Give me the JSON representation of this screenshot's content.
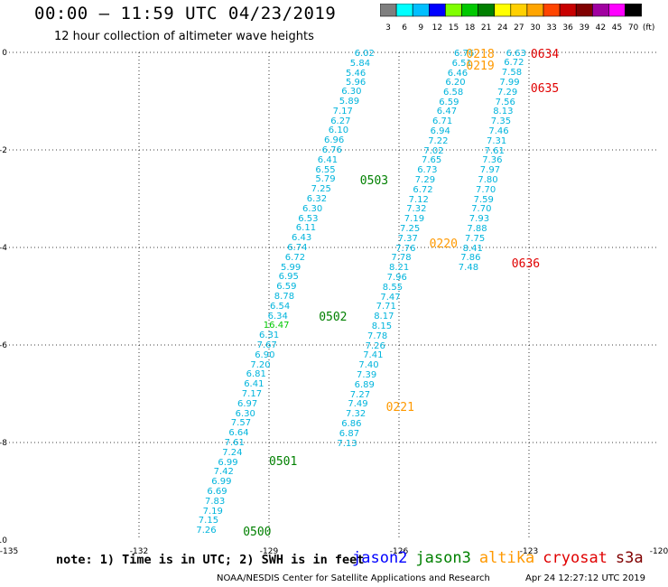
{
  "header": {
    "title": "00:00 — 11:59 UTC 04/23/2019",
    "subtitle": "12 hour collection of altimeter wave heights"
  },
  "color_scale": {
    "unit": "(ft)",
    "bins": [
      {
        "label": "3",
        "color": "#7f7f7f"
      },
      {
        "label": "6",
        "color": "#00ffff"
      },
      {
        "label": "9",
        "color": "#00bfff"
      },
      {
        "label": "12",
        "color": "#0000ff"
      },
      {
        "label": "15",
        "color": "#7fff00"
      },
      {
        "label": "18",
        "color": "#00c800"
      },
      {
        "label": "21",
        "color": "#008000"
      },
      {
        "label": "24",
        "color": "#ffff00"
      },
      {
        "label": "27",
        "color": "#ffd000"
      },
      {
        "label": "30",
        "color": "#ffa500"
      },
      {
        "label": "33",
        "color": "#ff4500"
      },
      {
        "label": "36",
        "color": "#c80000"
      },
      {
        "label": "39",
        "color": "#800000"
      },
      {
        "label": "42",
        "color": "#a000a0"
      },
      {
        "label": "45",
        "color": "#ff00ff"
      },
      {
        "label": "70",
        "color": "#000000"
      }
    ]
  },
  "axes": {
    "x_ticks": [
      "-135",
      "-132",
      "-129",
      "-126",
      "-123",
      "-120"
    ],
    "y_ticks": [
      "0",
      "-2",
      "-4",
      "-6",
      "-8",
      "-10"
    ],
    "x_range": [
      -135,
      -120
    ],
    "y_range": [
      -10,
      0
    ]
  },
  "chart_data": {
    "type": "scatter",
    "series": [
      {
        "track": "A",
        "color": "#00b4dc",
        "points": [
          {
            "lon": -126.8,
            "lat": -0.03,
            "v": "6.02"
          },
          {
            "lon": -126.9,
            "lat": -0.24,
            "v": "5.84"
          },
          {
            "lon": -127.0,
            "lat": -0.44,
            "v": "5.46"
          },
          {
            "lon": -127.0,
            "lat": -0.63,
            "v": "5.96"
          },
          {
            "lon": -127.1,
            "lat": -0.82,
            "v": "6.30"
          },
          {
            "lon": -127.15,
            "lat": -1.02,
            "v": "5.89"
          },
          {
            "lon": -127.3,
            "lat": -1.22,
            "v": "7.17"
          },
          {
            "lon": -127.35,
            "lat": -1.42,
            "v": "6.27"
          },
          {
            "lon": -127.4,
            "lat": -1.62,
            "v": "6.10"
          },
          {
            "lon": -127.5,
            "lat": -1.82,
            "v": "6.96"
          },
          {
            "lon": -127.55,
            "lat": -2.02,
            "v": "6.76"
          },
          {
            "lon": -127.65,
            "lat": -2.22,
            "v": "6.41"
          },
          {
            "lon": -127.7,
            "lat": -2.42,
            "v": "6.55"
          },
          {
            "lon": -127.7,
            "lat": -2.62,
            "v": "5.79"
          },
          {
            "lon": -127.8,
            "lat": -2.82,
            "v": "7.25"
          },
          {
            "lon": -127.9,
            "lat": -3.02,
            "v": "6.32"
          },
          {
            "lon": -128.0,
            "lat": -3.22,
            "v": "6.30"
          },
          {
            "lon": -128.1,
            "lat": -3.42,
            "v": "6.53"
          },
          {
            "lon": -128.15,
            "lat": -3.62,
            "v": "6.11"
          },
          {
            "lon": -128.25,
            "lat": -3.82,
            "v": "6.43"
          },
          {
            "lon": -128.35,
            "lat": -4.02,
            "v": "6.74"
          },
          {
            "lon": -128.4,
            "lat": -4.22,
            "v": "6.72"
          },
          {
            "lon": -128.5,
            "lat": -4.42,
            "v": "5.99"
          },
          {
            "lon": -128.55,
            "lat": -4.62,
            "v": "6.95"
          },
          {
            "lon": -128.6,
            "lat": -4.82,
            "v": "6.59"
          },
          {
            "lon": -128.65,
            "lat": -5.02,
            "v": "8.78"
          },
          {
            "lon": -128.75,
            "lat": -5.22,
            "v": "6.54"
          },
          {
            "lon": -128.8,
            "lat": -5.42,
            "v": "6.34"
          },
          {
            "lon": -128.9,
            "lat": -5.62,
            "v": "16.47",
            "color": "#00c800"
          },
          {
            "lon": -129.0,
            "lat": -5.82,
            "v": "6.31"
          },
          {
            "lon": -129.05,
            "lat": -6.02,
            "v": "7.67"
          },
          {
            "lon": -129.1,
            "lat": -6.22,
            "v": "6.90"
          },
          {
            "lon": -129.2,
            "lat": -6.42,
            "v": "7.20"
          },
          {
            "lon": -129.3,
            "lat": -6.62,
            "v": "6.81"
          },
          {
            "lon": -129.35,
            "lat": -6.82,
            "v": "6.41"
          },
          {
            "lon": -129.4,
            "lat": -7.02,
            "v": "7.17"
          },
          {
            "lon": -129.5,
            "lat": -7.22,
            "v": "6.97"
          },
          {
            "lon": -129.55,
            "lat": -7.42,
            "v": "6.30"
          },
          {
            "lon": -129.65,
            "lat": -7.62,
            "v": "7.57"
          },
          {
            "lon": -129.7,
            "lat": -7.82,
            "v": "6.64"
          },
          {
            "lon": -129.8,
            "lat": -8.02,
            "v": "7.61"
          },
          {
            "lon": -129.85,
            "lat": -8.22,
            "v": "7.24"
          },
          {
            "lon": -129.95,
            "lat": -8.42,
            "v": "6.99"
          },
          {
            "lon": -130.05,
            "lat": -8.62,
            "v": "7.42"
          },
          {
            "lon": -130.1,
            "lat": -8.82,
            "v": "6.99"
          },
          {
            "lon": -130.2,
            "lat": -9.02,
            "v": "6.69"
          },
          {
            "lon": -130.25,
            "lat": -9.22,
            "v": "7.83"
          },
          {
            "lon": -130.3,
            "lat": -9.42,
            "v": "7.19"
          },
          {
            "lon": -130.4,
            "lat": -9.62,
            "v": "7.15"
          },
          {
            "lon": -130.45,
            "lat": -9.82,
            "v": "7.26"
          }
        ]
      },
      {
        "track": "B",
        "color": "#00b4dc",
        "points": [
          {
            "lon": -124.5,
            "lat": -0.03,
            "v": "6.76"
          },
          {
            "lon": -124.55,
            "lat": -0.24,
            "v": "6.51"
          },
          {
            "lon": -124.65,
            "lat": -0.44,
            "v": "6.46"
          },
          {
            "lon": -124.7,
            "lat": -0.63,
            "v": "6.20"
          },
          {
            "lon": -124.75,
            "lat": -0.83,
            "v": "6.58"
          },
          {
            "lon": -124.85,
            "lat": -1.03,
            "v": "6.59"
          },
          {
            "lon": -124.9,
            "lat": -1.23,
            "v": "6.47"
          },
          {
            "lon": -125.0,
            "lat": -1.43,
            "v": "6.71"
          },
          {
            "lon": -125.05,
            "lat": -1.63,
            "v": "6.94"
          },
          {
            "lon": -125.1,
            "lat": -1.83,
            "v": "7.22"
          },
          {
            "lon": -125.2,
            "lat": -2.03,
            "v": "7.02"
          },
          {
            "lon": -125.25,
            "lat": -2.23,
            "v": "7.65"
          },
          {
            "lon": -125.35,
            "lat": -2.43,
            "v": "6.73"
          },
          {
            "lon": -125.4,
            "lat": -2.63,
            "v": "7.29"
          },
          {
            "lon": -125.45,
            "lat": -2.83,
            "v": "6.72"
          },
          {
            "lon": -125.55,
            "lat": -3.03,
            "v": "7.12"
          },
          {
            "lon": -125.6,
            "lat": -3.23,
            "v": "7.32"
          },
          {
            "lon": -125.65,
            "lat": -3.43,
            "v": "7.19"
          },
          {
            "lon": -125.75,
            "lat": -3.63,
            "v": "7.25"
          },
          {
            "lon": -125.8,
            "lat": -3.83,
            "v": "7.37"
          },
          {
            "lon": -125.85,
            "lat": -4.03,
            "v": "7.76"
          },
          {
            "lon": -125.95,
            "lat": -4.23,
            "v": "7.78"
          },
          {
            "lon": -126.0,
            "lat": -4.43,
            "v": "8.21"
          },
          {
            "lon": -126.05,
            "lat": -4.63,
            "v": "7.96"
          },
          {
            "lon": -126.15,
            "lat": -4.83,
            "v": "8.55"
          },
          {
            "lon": -126.2,
            "lat": -5.03,
            "v": "7.47"
          },
          {
            "lon": -126.3,
            "lat": -5.23,
            "v": "7.71"
          },
          {
            "lon": -126.35,
            "lat": -5.43,
            "v": "8.17"
          },
          {
            "lon": -126.4,
            "lat": -5.63,
            "v": "8.15"
          },
          {
            "lon": -126.5,
            "lat": -5.83,
            "v": "7.78"
          },
          {
            "lon": -126.55,
            "lat": -6.03,
            "v": "7.26"
          },
          {
            "lon": -126.6,
            "lat": -6.23,
            "v": "7.41"
          },
          {
            "lon": -126.7,
            "lat": -6.43,
            "v": "7.40"
          },
          {
            "lon": -126.75,
            "lat": -6.63,
            "v": "7.39"
          },
          {
            "lon": -126.8,
            "lat": -6.83,
            "v": "6.89"
          },
          {
            "lon": -126.9,
            "lat": -7.03,
            "v": "7.27"
          },
          {
            "lon": -126.95,
            "lat": -7.23,
            "v": "7.49"
          },
          {
            "lon": -127.0,
            "lat": -7.43,
            "v": "7.32"
          },
          {
            "lon": -127.1,
            "lat": -7.63,
            "v": "6.86"
          },
          {
            "lon": -127.15,
            "lat": -7.83,
            "v": "6.87"
          },
          {
            "lon": -127.2,
            "lat": -8.03,
            "v": "7.13"
          }
        ]
      },
      {
        "track": "C",
        "color": "#00b4dc",
        "points": [
          {
            "lon": -123.3,
            "lat": -0.03,
            "v": "6.63"
          },
          {
            "lon": -123.35,
            "lat": -0.23,
            "v": "6.72"
          },
          {
            "lon": -123.4,
            "lat": -0.43,
            "v": "7.58"
          },
          {
            "lon": -123.45,
            "lat": -0.63,
            "v": "7.99"
          },
          {
            "lon": -123.5,
            "lat": -0.83,
            "v": "7.29"
          },
          {
            "lon": -123.55,
            "lat": -1.03,
            "v": "7.56"
          },
          {
            "lon": -123.6,
            "lat": -1.23,
            "v": "8.13"
          },
          {
            "lon": -123.65,
            "lat": -1.43,
            "v": "7.35"
          },
          {
            "lon": -123.7,
            "lat": -1.63,
            "v": "7.46"
          },
          {
            "lon": -123.75,
            "lat": -1.83,
            "v": "7.31"
          },
          {
            "lon": -123.8,
            "lat": -2.03,
            "v": "7.61"
          },
          {
            "lon": -123.85,
            "lat": -2.23,
            "v": "7.36"
          },
          {
            "lon": -123.9,
            "lat": -2.43,
            "v": "7.97"
          },
          {
            "lon": -123.95,
            "lat": -2.63,
            "v": "7.80"
          },
          {
            "lon": -124.0,
            "lat": -2.83,
            "v": "7.70"
          },
          {
            "lon": -124.05,
            "lat": -3.03,
            "v": "7.59"
          },
          {
            "lon": -124.1,
            "lat": -3.23,
            "v": "7.70"
          },
          {
            "lon": -124.15,
            "lat": -3.43,
            "v": "7.93"
          },
          {
            "lon": -124.2,
            "lat": -3.63,
            "v": "7.88"
          },
          {
            "lon": -124.25,
            "lat": -3.83,
            "v": "7.75"
          },
          {
            "lon": -124.3,
            "lat": -4.03,
            "v": "8.41"
          },
          {
            "lon": -124.35,
            "lat": -4.23,
            "v": "7.86"
          },
          {
            "lon": -124.4,
            "lat": -4.43,
            "v": "7.48"
          }
        ]
      }
    ],
    "time_labels": [
      {
        "text": "0218",
        "color": "#ff9900",
        "lon": -124.45,
        "lat": -0.05
      },
      {
        "text": "0219",
        "color": "#ff9900",
        "lon": -124.45,
        "lat": -0.3
      },
      {
        "text": "0220",
        "color": "#ff9900",
        "lon": -125.3,
        "lat": -3.95
      },
      {
        "text": "0221",
        "color": "#ff9900",
        "lon": -126.3,
        "lat": -7.3
      },
      {
        "text": "0634",
        "color": "#e00000",
        "lon": -122.96,
        "lat": -0.05
      },
      {
        "text": "0635",
        "color": "#e00000",
        "lon": -122.96,
        "lat": -0.75
      },
      {
        "text": "0636",
        "color": "#e00000",
        "lon": -123.4,
        "lat": -4.35
      },
      {
        "text": "0503",
        "color": "#008000",
        "lon": -126.9,
        "lat": -2.65
      },
      {
        "text": "0502",
        "color": "#008000",
        "lon": -127.85,
        "lat": -5.45
      },
      {
        "text": "0501",
        "color": "#008000",
        "lon": -129.0,
        "lat": -8.4
      },
      {
        "text": "0500",
        "color": "#008000",
        "lon": -129.6,
        "lat": -9.85
      }
    ]
  },
  "footer": {
    "note": "note: 1) Time is in UTC; 2) SWH is in feet",
    "legend": [
      {
        "label": "jason2",
        "color": "#0000ff"
      },
      {
        "label": "jason3",
        "color": "#008000"
      },
      {
        "label": "altika",
        "color": "#ff9900"
      },
      {
        "label": "cryosat",
        "color": "#e00000"
      },
      {
        "label": "s3a",
        "color": "#800000"
      }
    ],
    "credit": "NOAA/NESDIS Center for Satellite Applications and Research",
    "timestamp": "Apr 24 12:27:12 UTC 2019"
  }
}
